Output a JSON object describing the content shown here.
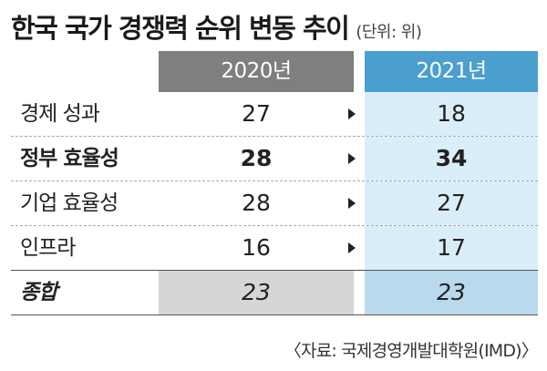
{
  "title": "한국 국가 경쟁력 순위 변동 추이",
  "unit": "(단위: 위)",
  "columns": [
    "2020년",
    "2021년"
  ],
  "rows": [
    {
      "label": "경제 성과",
      "y2020": "27",
      "y2021": "18",
      "bold": false
    },
    {
      "label": "정부 효율성",
      "y2020": "28",
      "y2021": "34",
      "bold": true
    },
    {
      "label": "기업 효율성",
      "y2020": "28",
      "y2021": "27",
      "bold": false
    },
    {
      "label": "인프라",
      "y2020": "16",
      "y2021": "17",
      "bold": false
    }
  ],
  "total": {
    "label": "종합",
    "y2020": "23",
    "y2021": "23"
  },
  "source": "〈자료: 국제경영개발대학원(IMD)〉",
  "colors": {
    "header_2020": "#7f7f7f",
    "header_2021": "#4a9fce",
    "cell_2021": "#daeef9",
    "total_2020": "#d6d6d6",
    "total_2021": "#b9d9ec"
  }
}
